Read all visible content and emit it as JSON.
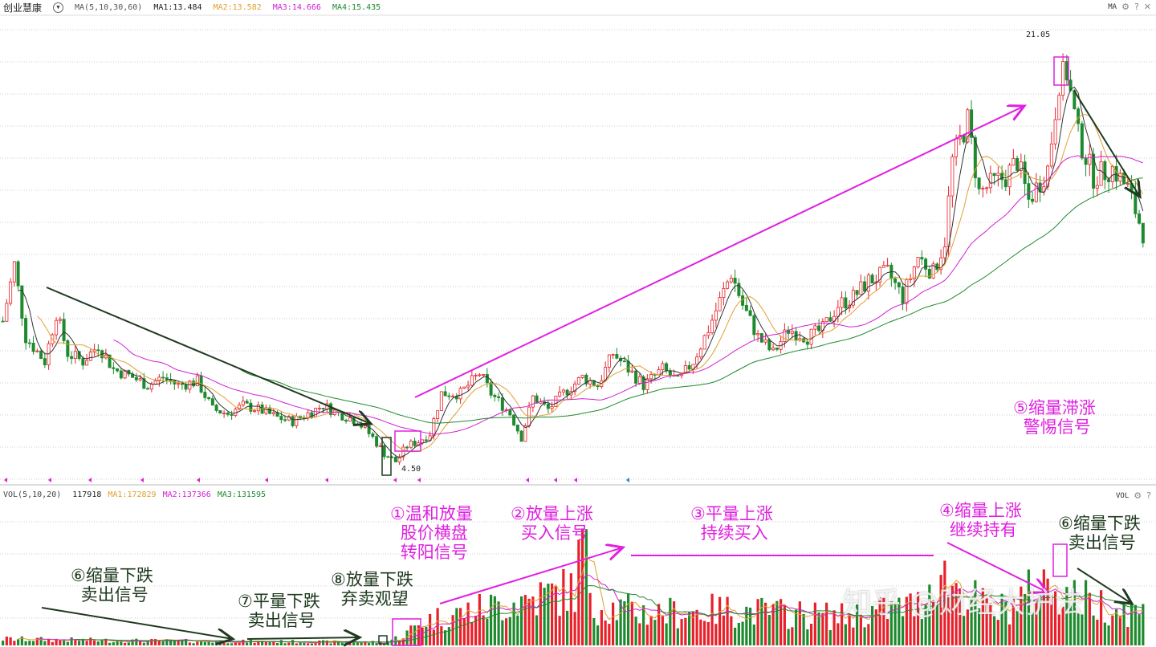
{
  "header": {
    "stock_name": "创业慧康",
    "indicator": "MA(5,10,30,60)",
    "ma1": "MA1:13.484",
    "ma2": "MA2:13.582",
    "ma3": "MA3:14.666",
    "ma4": "MA4:15.435",
    "right_label": "MA"
  },
  "vol_header": {
    "indicator": "VOL(5,10,20)",
    "value": "117918",
    "ma1": "MA1:172829",
    "ma2": "MA2:137366",
    "ma3": "MA3:131595",
    "right_label": "VOL"
  },
  "colors": {
    "up": "#e8202a",
    "down": "#1e8a2e",
    "ma1": "#333333",
    "ma2": "#e0a030",
    "ma3": "#d020d0",
    "ma4": "#1e8a2e",
    "annotation_pink": "#e020e0",
    "annotation_dark": "#1f3a1f"
  },
  "icons": [
    "chevron-down-icon",
    "gear-icon",
    "help-icon",
    "close-icon"
  ],
  "chart_data": {
    "type": "candlestick",
    "price_high_label": "21.05",
    "price_low_label": "4.50",
    "ylim": [
      4.2,
      22.5
    ],
    "close_keypoints": [
      [
        0,
        10.19
      ],
      [
        3,
        12.35
      ],
      [
        6,
        9.58
      ],
      [
        11,
        8.65
      ],
      [
        14,
        10.5
      ],
      [
        17,
        8.96
      ],
      [
        21,
        8.65
      ],
      [
        25,
        9.27
      ],
      [
        29,
        8.35
      ],
      [
        34,
        8.04
      ],
      [
        38,
        7.73
      ],
      [
        42,
        8.04
      ],
      [
        46,
        7.73
      ],
      [
        51,
        7.88
      ],
      [
        55,
        6.81
      ],
      [
        59,
        6.65
      ],
      [
        63,
        6.96
      ],
      [
        67,
        6.81
      ],
      [
        72,
        6.5
      ],
      [
        76,
        6.35
      ],
      [
        80,
        6.65
      ],
      [
        84,
        6.96
      ],
      [
        88,
        6.65
      ],
      [
        93,
        6.35
      ],
      [
        97,
        5.73
      ],
      [
        100,
        5.12
      ],
      [
        103,
        4.81
      ],
      [
        106,
        5.42
      ],
      [
        109,
        5.58
      ],
      [
        112,
        5.89
      ],
      [
        115,
        7.42
      ],
      [
        120,
        7.42
      ],
      [
        125,
        8.19
      ],
      [
        128,
        7.42
      ],
      [
        133,
        6.65
      ],
      [
        136,
        5.73
      ],
      [
        139,
        7.27
      ],
      [
        143,
        6.81
      ],
      [
        147,
        7.42
      ],
      [
        152,
        8.04
      ],
      [
        156,
        7.73
      ],
      [
        160,
        8.96
      ],
      [
        164,
        8.35
      ],
      [
        168,
        7.73
      ],
      [
        173,
        8.35
      ],
      [
        177,
        7.88
      ],
      [
        181,
        8.65
      ],
      [
        185,
        9.88
      ],
      [
        191,
        12.04
      ],
      [
        194,
        10.81
      ],
      [
        198,
        9.58
      ],
      [
        202,
        8.96
      ],
      [
        206,
        9.88
      ],
      [
        211,
        9.58
      ],
      [
        215,
        9.88
      ],
      [
        219,
        10.81
      ],
      [
        223,
        11.11
      ],
      [
        227,
        11.73
      ],
      [
        232,
        12.04
      ],
      [
        236,
        11.11
      ],
      [
        240,
        12.65
      ],
      [
        244,
        12.04
      ],
      [
        247,
        13.27
      ],
      [
        249,
        16.34
      ],
      [
        253,
        17.88
      ],
      [
        256,
        15.11
      ],
      [
        259,
        15.42
      ],
      [
        263,
        15.73
      ],
      [
        266,
        16.34
      ],
      [
        269,
        14.81
      ],
      [
        274,
        16.04
      ],
      [
        277,
        19.42
      ],
      [
        279,
        19.73
      ],
      [
        282,
        17.27
      ],
      [
        286,
        15.73
      ],
      [
        291,
        16.04
      ],
      [
        295,
        15.27
      ],
      [
        299,
        13.58
      ]
    ],
    "volume_keypoints": [
      [
        0,
        40000
      ],
      [
        30,
        30000
      ],
      [
        60,
        25000
      ],
      [
        100,
        20000
      ],
      [
        105,
        60000
      ],
      [
        110,
        150000
      ],
      [
        120,
        200000
      ],
      [
        150,
        350000
      ],
      [
        152,
        650000
      ],
      [
        155,
        250000
      ],
      [
        170,
        200000
      ],
      [
        190,
        220000
      ],
      [
        220,
        180000
      ],
      [
        240,
        250000
      ],
      [
        245,
        450000
      ],
      [
        260,
        200000
      ],
      [
        275,
        400000
      ],
      [
        280,
        300000
      ],
      [
        299,
        200000
      ]
    ],
    "ma_periods": [
      5,
      10,
      30,
      60
    ],
    "vol_ma_periods": [
      5,
      10,
      20
    ]
  },
  "annotations": {
    "a1": "①温和放量\n 股价横盘\n 转阳信号",
    "a2": "②放量上涨\n 买入信号",
    "a3": "③平量上涨\n 持续买入",
    "a4": "④缩量上涨\n 继续持有",
    "a5": "⑤缩量滞涨\n 警惕信号",
    "a6a": "⑥缩量下跌\n 卖出信号",
    "a6b": "⑥缩量下跌\n 卖出信号",
    "a7": "⑦平量下跌\n 卖出信号",
    "a8": "⑧放量下跌\n 弃卖观望"
  },
  "watermark": "知乎 @财经大护法"
}
